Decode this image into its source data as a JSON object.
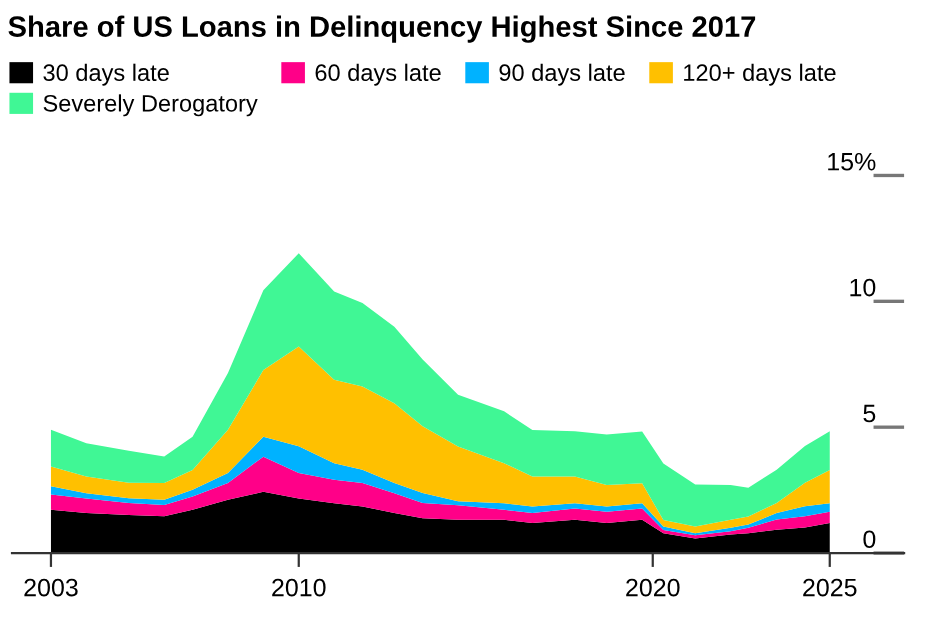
{
  "chart_data": {
    "type": "area",
    "stacked": true,
    "title": "Share of US Loans in Delinquency Highest Since 2017",
    "x": [
      2003.0,
      2004.0,
      2005.2,
      2006.2,
      2007.0,
      2008.0,
      2009.0,
      2010.0,
      2011.0,
      2011.8,
      2012.7,
      2013.5,
      2014.5,
      2015.8,
      2016.6,
      2017.8,
      2018.7,
      2019.7,
      2020.3,
      2021.2,
      2022.2,
      2022.7,
      2023.5,
      2024.3,
      2025.0
    ],
    "series": [
      {
        "name": "30 days late",
        "color": "#000000",
        "values": [
          1.72,
          1.59,
          1.51,
          1.46,
          1.72,
          2.12,
          2.43,
          2.17,
          1.98,
          1.85,
          1.59,
          1.38,
          1.32,
          1.32,
          1.19,
          1.32,
          1.19,
          1.32,
          0.79,
          0.58,
          0.74,
          0.79,
          0.93,
          1.01,
          1.19
        ]
      },
      {
        "name": "60 days late",
        "color": "#ff0088",
        "values": [
          0.61,
          0.58,
          0.48,
          0.45,
          0.53,
          0.66,
          1.4,
          1.01,
          0.93,
          0.93,
          0.79,
          0.61,
          0.58,
          0.4,
          0.4,
          0.45,
          0.45,
          0.45,
          0.13,
          0.13,
          0.13,
          0.21,
          0.4,
          0.45,
          0.45
        ]
      },
      {
        "name": "90 days late",
        "color": "#00b2ff",
        "values": [
          0.32,
          0.21,
          0.19,
          0.21,
          0.26,
          0.4,
          0.79,
          1.06,
          0.66,
          0.53,
          0.4,
          0.4,
          0.16,
          0.26,
          0.26,
          0.21,
          0.21,
          0.21,
          0.13,
          0.08,
          0.13,
          0.13,
          0.26,
          0.4,
          0.34
        ]
      },
      {
        "name": "120+ days late",
        "color": "#ffc000",
        "values": [
          0.79,
          0.66,
          0.61,
          0.66,
          0.79,
          1.72,
          2.65,
          3.97,
          3.31,
          3.31,
          3.17,
          2.65,
          2.17,
          1.59,
          1.19,
          1.06,
          0.85,
          0.79,
          0.26,
          0.26,
          0.32,
          0.32,
          0.4,
          0.93,
          1.32
        ]
      },
      {
        "name": "Severely Derogatory",
        "color": "#40f795",
        "values": [
          1.46,
          1.32,
          1.27,
          1.06,
          1.32,
          2.25,
          3.17,
          3.7,
          3.51,
          3.31,
          3.04,
          2.65,
          2.06,
          2.06,
          1.85,
          1.8,
          2.01,
          2.06,
          2.25,
          1.67,
          1.38,
          1.14,
          1.32,
          1.46,
          1.54
        ]
      }
    ],
    "xlim": [
      2001.9,
      2027.1
    ],
    "xticks": [
      2003,
      2010,
      2020,
      2025
    ],
    "ylim": [
      0,
      15
    ],
    "yticks": [
      0,
      5,
      10,
      {
        "value": 15,
        "label": "15%"
      }
    ],
    "legend": "top",
    "grid": false
  }
}
